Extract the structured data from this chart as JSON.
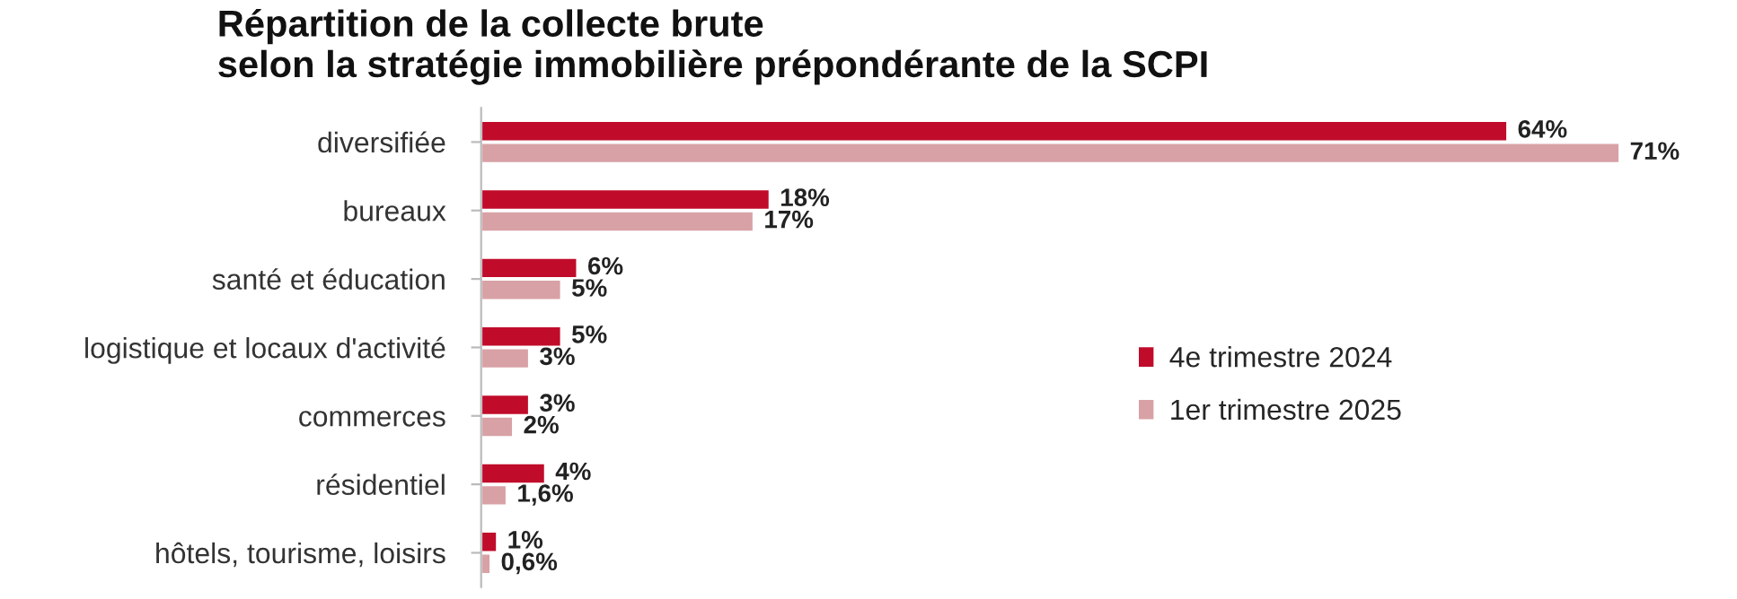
{
  "chart_data": {
    "type": "bar",
    "orientation": "horizontal",
    "title": "Répartition de la collecte brute\nselon la stratégie immobilière prépondérante de la SCPI",
    "categories": [
      "diversifiée",
      "bureaux",
      "santé et éducation",
      "logistique et locaux d'activité",
      "commerces",
      "résidentiel",
      "hôtels, tourisme, loisirs"
    ],
    "series": [
      {
        "name": "4e trimestre 2024",
        "color": "#c00c2a",
        "values": [
          64,
          18,
          6,
          5,
          3,
          4,
          1
        ],
        "value_labels": [
          "64%",
          "18%",
          "6%",
          "5%",
          "3%",
          "4%",
          "1%"
        ]
      },
      {
        "name": "1er trimestre 2025",
        "color": "#d8a1a6",
        "values": [
          71,
          17,
          5,
          3,
          2,
          1.6,
          0.6
        ],
        "value_labels": [
          "71%",
          "17%",
          "5%",
          "3%",
          "2%",
          "1,6%",
          "0,6%"
        ]
      }
    ],
    "legend": "right",
    "grid": false
  }
}
